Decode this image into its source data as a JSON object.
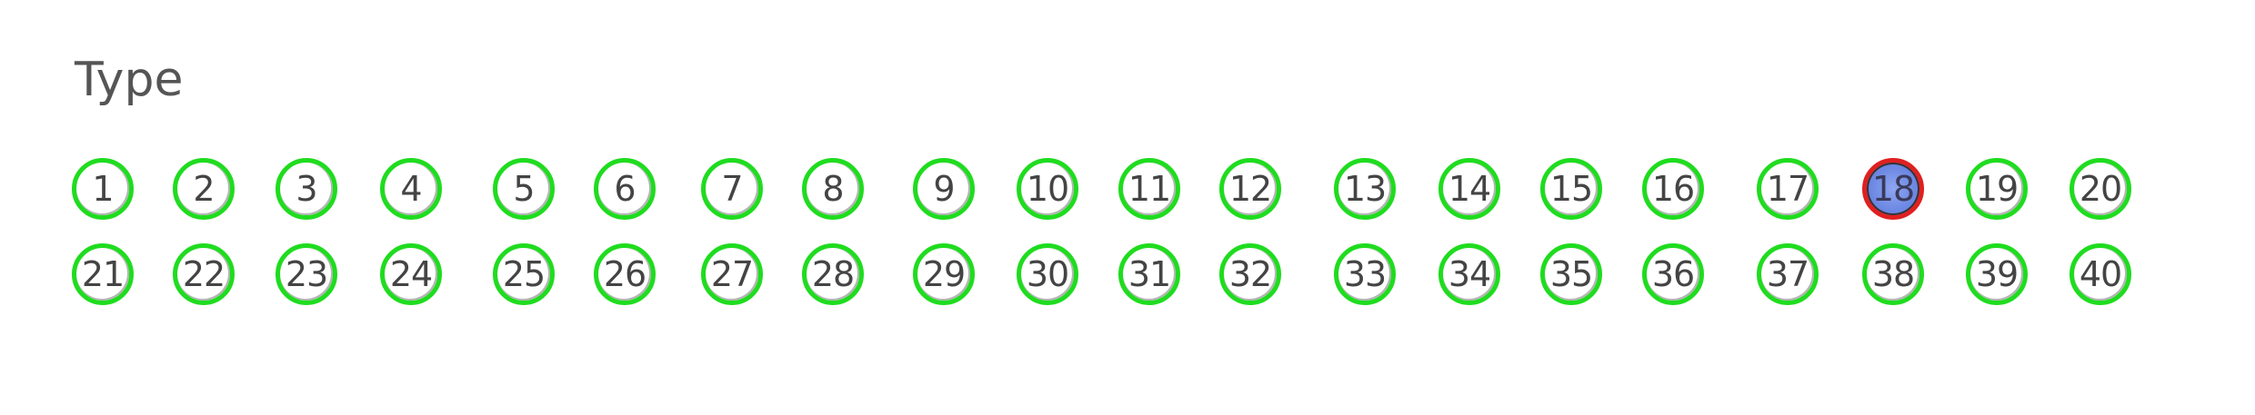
{
  "section": {
    "title": "Type"
  },
  "colors": {
    "default_ring": "#1fdc1f",
    "selected_ring": "#e02020",
    "selected_fill": "#6f8ae4"
  },
  "selected_value": "18",
  "options": [
    {
      "label": "1"
    },
    {
      "label": "2"
    },
    {
      "label": "3"
    },
    {
      "label": "4"
    },
    {
      "label": "5"
    },
    {
      "label": "6"
    },
    {
      "label": "7"
    },
    {
      "label": "8"
    },
    {
      "label": "9"
    },
    {
      "label": "10"
    },
    {
      "label": "11"
    },
    {
      "label": "12"
    },
    {
      "label": "13"
    },
    {
      "label": "14"
    },
    {
      "label": "15"
    },
    {
      "label": "16"
    },
    {
      "label": "17"
    },
    {
      "label": "18"
    },
    {
      "label": "19"
    },
    {
      "label": "20"
    },
    {
      "label": "21"
    },
    {
      "label": "22"
    },
    {
      "label": "23"
    },
    {
      "label": "24"
    },
    {
      "label": "25"
    },
    {
      "label": "26"
    },
    {
      "label": "27"
    },
    {
      "label": "28"
    },
    {
      "label": "29"
    },
    {
      "label": "30"
    },
    {
      "label": "31"
    },
    {
      "label": "32"
    },
    {
      "label": "33"
    },
    {
      "label": "34"
    },
    {
      "label": "35"
    },
    {
      "label": "36"
    },
    {
      "label": "37"
    },
    {
      "label": "38"
    },
    {
      "label": "39"
    },
    {
      "label": "40"
    }
  ]
}
